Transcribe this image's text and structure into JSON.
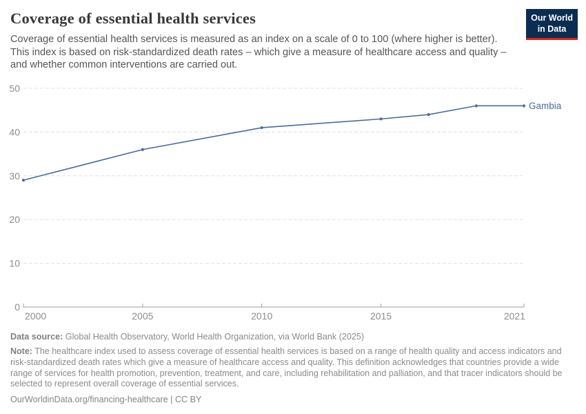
{
  "brand": {
    "logo_line1": "Our World",
    "logo_line2": "in Data"
  },
  "header": {
    "title": "Coverage of essential health services",
    "subtitle": "Coverage of essential health services is measured as an index on a scale of 0 to 100 (where higher is better).\nThis index is based on risk-standardized death rates – which give a measure of healthcare access and quality –\nand whether common interventions are carried out."
  },
  "chart_data": {
    "type": "line",
    "title": "Coverage of essential health services",
    "x": [
      2000,
      2005,
      2010,
      2015,
      2017,
      2019,
      2021
    ],
    "series": [
      {
        "name": "Gambia",
        "color": "#4c6a9c",
        "values": [
          29,
          36,
          41,
          43,
          44,
          46,
          46
        ]
      }
    ],
    "xlabel": "",
    "ylabel": "",
    "xlim": [
      2000,
      2021
    ],
    "ylim": [
      0,
      50
    ],
    "x_ticks": [
      2000,
      2005,
      2010,
      2015,
      2021
    ],
    "y_ticks": [
      0,
      10,
      20,
      30,
      40,
      50
    ],
    "grid": "horizontal-dashed",
    "legend_position": "line-end-label",
    "end_label": "Gambia"
  },
  "footer": {
    "data_source_label": "Data source:",
    "data_source_text": "Global Health Observatory, World Health Organization, via World Bank (2025)",
    "note_label": "Note:",
    "note_text": "The healthcare index used to assess coverage of essential health services is based on a range of health quality and access indicators and risk-standardized death rates which give a measure of healthcare access and quality. This definition acknowledges that countries provide a wide range of services for health promotion, prevention, treatment, and care, including rehabilitation and palliation, and that tracer indicators should be selected to represent overall coverage of essential services.",
    "link": "OurWorldinData.org/financing-healthcare | CC BY"
  },
  "colors": {
    "series_blue": "#4c6a9c",
    "logo_bg": "#0c2d52",
    "logo_accent": "#d22a1f",
    "grid": "#e0e0e0",
    "axis": "#9e9e9e",
    "tick_label": "#8c8c8c"
  }
}
